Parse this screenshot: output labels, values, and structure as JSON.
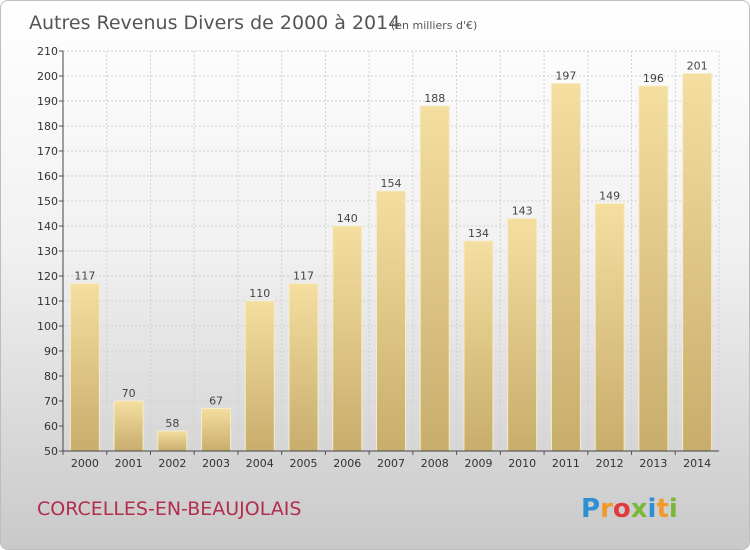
{
  "chart_data": {
    "type": "bar",
    "title": "Autres Revenus Divers de 2000 à 2014",
    "subtitle": "(en milliers d'€)",
    "categories": [
      "2000",
      "2001",
      "2002",
      "2003",
      "2004",
      "2005",
      "2006",
      "2007",
      "2008",
      "2009",
      "2010",
      "2011",
      "2012",
      "2013",
      "2014"
    ],
    "values": [
      117,
      70,
      58,
      67,
      110,
      117,
      140,
      154,
      188,
      134,
      143,
      197,
      149,
      196,
      201
    ],
    "ylim": [
      50,
      210
    ],
    "yticks": [
      50,
      60,
      70,
      80,
      90,
      100,
      110,
      120,
      130,
      140,
      150,
      160,
      170,
      180,
      190,
      200,
      210
    ],
    "xlabel": "",
    "ylabel": "",
    "grid": true,
    "data_labels": true,
    "bar_color": "#e3c884"
  },
  "footer": {
    "commune": "CORCELLES-EN-BEAUJOLAIS",
    "logo_letters": [
      "P",
      "r",
      "o",
      "x",
      "i",
      "t",
      "i"
    ],
    "logo_colors": [
      "#2f8fd4",
      "#f09a2a",
      "#e23b3b",
      "#7ab83a",
      "#2f8fd4",
      "#f09a2a",
      "#7ab83a"
    ]
  }
}
